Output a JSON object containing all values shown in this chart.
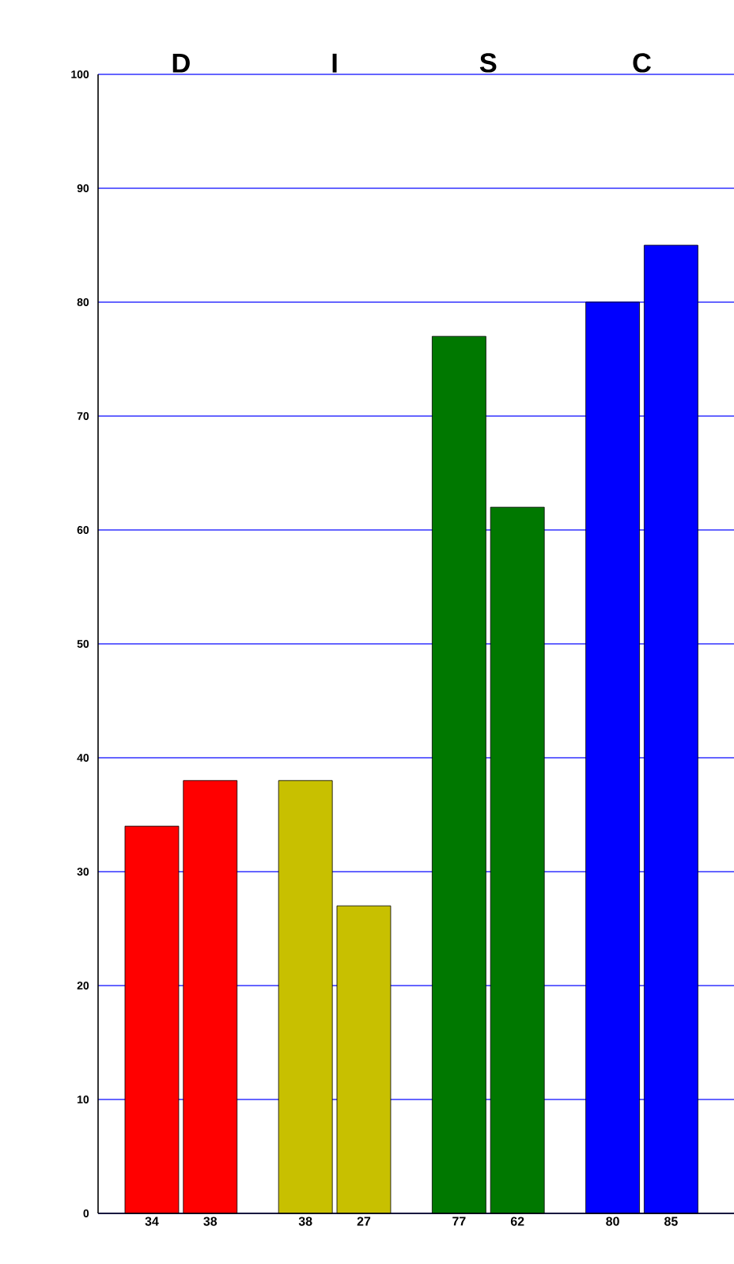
{
  "chart_data": {
    "type": "bar",
    "categories": [
      "D",
      "I",
      "S",
      "C"
    ],
    "series": [
      {
        "colors": [
          "#ff0000",
          "#c8c000",
          "#007800",
          "#0000ff"
        ],
        "values": [
          34,
          38,
          77,
          80
        ],
        "value_labels": [
          "34",
          "38",
          "77",
          "80"
        ]
      },
      {
        "colors": [
          "#ff0000",
          "#c8c000",
          "#007800",
          "#0000ff"
        ],
        "values": [
          38,
          27,
          62,
          85
        ],
        "value_labels": [
          "38",
          "27",
          "62",
          "85"
        ]
      }
    ],
    "ylim": [
      0,
      100
    ],
    "yticks": [
      0,
      10,
      20,
      30,
      40,
      50,
      60,
      70,
      80,
      90,
      100
    ],
    "grid": "y",
    "data_labels": true
  }
}
